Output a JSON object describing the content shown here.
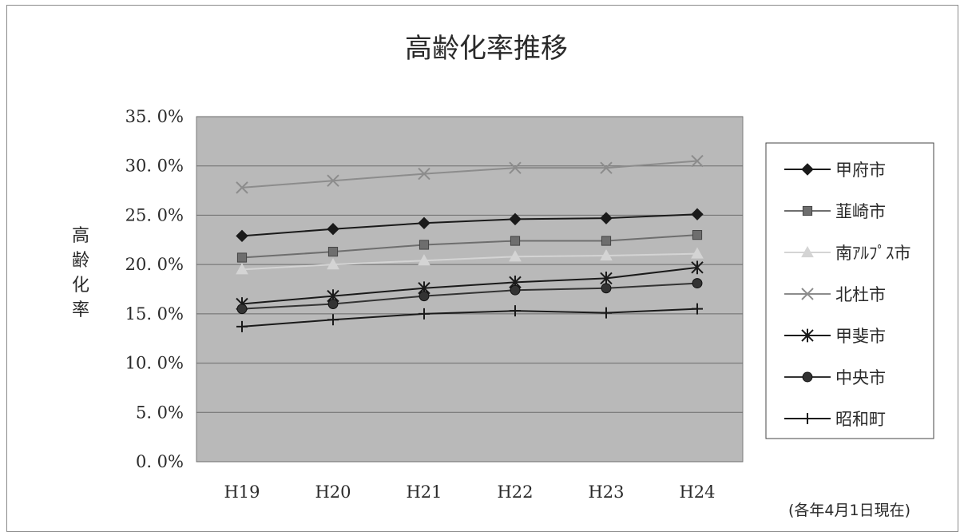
{
  "chart_data": {
    "type": "line",
    "title": "高齢化率推移",
    "ylabel": "高齢化率",
    "xlabel": "",
    "note": "(各年4月1日現在)",
    "categories": [
      "H19",
      "H20",
      "H21",
      "H22",
      "H23",
      "H24"
    ],
    "ylim": [
      0,
      35
    ],
    "yticks": [
      "0. 0%",
      "5. 0%",
      "10. 0%",
      "15. 0%",
      "20. 0%",
      "25. 0%",
      "30. 0%",
      "35. 0%"
    ],
    "grid": true,
    "legend_position": "right",
    "plot_background": "#b9b9b9",
    "series": [
      {
        "name": "甲府市",
        "marker": "diamond",
        "color": "#1a1a1a",
        "values": [
          22.9,
          23.6,
          24.2,
          24.6,
          24.7,
          25.1
        ]
      },
      {
        "name": "韮崎市",
        "marker": "square",
        "color": "#6e6e6e",
        "values": [
          20.7,
          21.3,
          22.0,
          22.4,
          22.4,
          23.0
        ]
      },
      {
        "name": "南ｱﾙﾌﾟｽ市",
        "marker": "triangle",
        "color": "#d4d4d4",
        "values": [
          19.5,
          20.0,
          20.4,
          20.8,
          20.9,
          21.1
        ]
      },
      {
        "name": "北杜市",
        "marker": "x",
        "color": "#8c8c8c",
        "values": [
          27.8,
          28.5,
          29.2,
          29.8,
          29.8,
          30.5
        ]
      },
      {
        "name": "甲斐市",
        "marker": "asterisk",
        "color": "#1a1a1a",
        "values": [
          16.0,
          16.8,
          17.6,
          18.2,
          18.6,
          19.7
        ]
      },
      {
        "name": "中央市",
        "marker": "circle",
        "color": "#333333",
        "values": [
          15.5,
          16.0,
          16.8,
          17.4,
          17.6,
          18.1
        ]
      },
      {
        "name": "昭和町",
        "marker": "plus",
        "color": "#1a1a1a",
        "values": [
          13.7,
          14.4,
          15.0,
          15.3,
          15.1,
          15.5
        ]
      }
    ]
  }
}
